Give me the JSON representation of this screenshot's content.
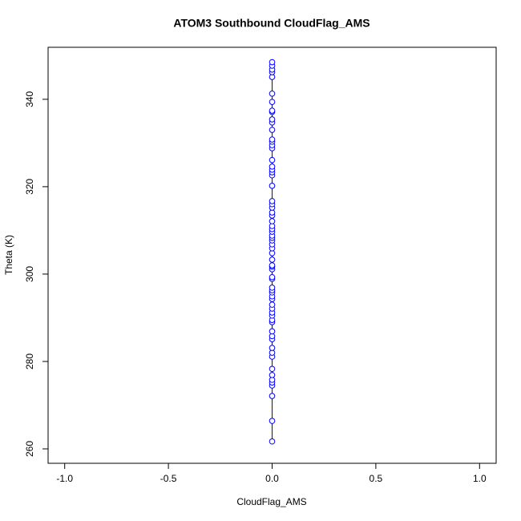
{
  "chart_data": {
    "type": "scatter",
    "title": "ATOM3 Southbound CloudFlag_AMS",
    "xlabel": "CloudFlag_AMS",
    "ylabel": "Theta (K)",
    "series": [
      {
        "color": "#0000ff",
        "x": [
          0,
          0,
          0,
          0,
          0,
          0,
          0,
          0,
          0,
          0,
          0,
          0,
          0,
          0,
          0,
          0,
          0,
          0,
          0,
          0,
          0,
          0,
          0,
          0,
          0,
          0,
          0,
          0,
          0,
          0,
          0,
          0,
          0,
          0,
          0,
          0,
          0,
          0,
          0,
          0,
          0,
          0,
          0,
          0,
          0,
          0,
          0,
          0,
          0,
          0,
          0,
          0,
          0,
          0,
          0,
          0,
          0,
          0,
          0,
          0,
          0,
          0,
          0,
          0,
          0,
          0,
          0,
          0
        ],
        "values": [
          261.7,
          266.4,
          272.1,
          274.5,
          275.2,
          275.8,
          276.9,
          278.3,
          281.1,
          282.0,
          283.1,
          285.1,
          285.8,
          286.9,
          289.0,
          289.5,
          290.5,
          291.2,
          292.1,
          293.0,
          294.3,
          294.9,
          295.8,
          296.3,
          296.9,
          298.9,
          299.3,
          301.1,
          301.7,
          302.0,
          303.3,
          304.8,
          305.9,
          306.8,
          307.7,
          308.3,
          308.8,
          309.7,
          310.3,
          311.0,
          312.1,
          313.4,
          314.1,
          315.2,
          316.0,
          316.7,
          320.2,
          322.6,
          323.3,
          323.9,
          324.6,
          326.1,
          328.8,
          329.5,
          330.3,
          330.8,
          333.0,
          334.7,
          335.4,
          337.1,
          337.4,
          339.4,
          341.3,
          345.1,
          346.2,
          346.8,
          347.7,
          348.5
        ]
      }
    ],
    "xlim": [
      -1.08,
      1.08
    ],
    "xticks": [
      {
        "value": -1,
        "label": "-1.0"
      },
      {
        "value": -0.5,
        "label": "-0.5"
      },
      {
        "value": 0,
        "label": "0.0"
      },
      {
        "value": 0.5,
        "label": "0.5"
      },
      {
        "value": 1,
        "label": "1.0"
      }
    ],
    "ylim": [
      256.7,
      351.9
    ],
    "yticks": [
      260,
      280,
      300,
      320,
      340
    ],
    "grid": false
  }
}
